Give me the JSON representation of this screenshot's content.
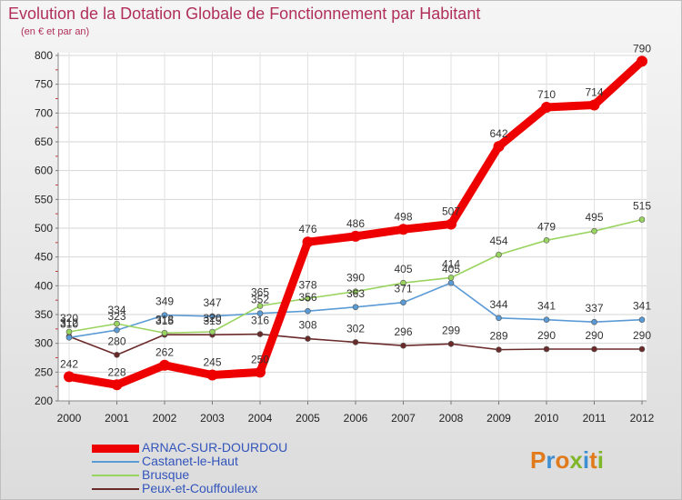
{
  "page": {
    "title": "Evolution de la Dotation Globale de Fonctionnement par Habitant",
    "subtitle": "(en € et par an)",
    "brand": "Proxiti"
  },
  "colors": {
    "title": "#b0305a",
    "legend_text": "#3355bb",
    "brand_letters": [
      "#e07a1a",
      "#3d8fd1",
      "#e07a1a",
      "#7fb62a",
      "#3d8fd1",
      "#e07a1a",
      "#7fb62a"
    ]
  },
  "chart_data": {
    "type": "line",
    "title": "Evolution de la Dotation Globale de Fonctionnement par Habitant",
    "ylabel": "(en € et par an)",
    "xlabel": "",
    "ylim": [
      200,
      800
    ],
    "yticks": [
      200,
      250,
      300,
      350,
      400,
      450,
      500,
      550,
      600,
      650,
      700,
      750,
      800
    ],
    "categories": [
      "2000",
      "2001",
      "2002",
      "2003",
      "2004",
      "2005",
      "2006",
      "2007",
      "2008",
      "2009",
      "2010",
      "2011",
      "2012"
    ],
    "grid": true,
    "legend_position": "bottom-left",
    "series": [
      {
        "name": "ARNAC-SUR-DOURDOU",
        "color": "#ee0000",
        "values": [
          242,
          228,
          262,
          245,
          250,
          476,
          486,
          498,
          507,
          642,
          710,
          714,
          790
        ]
      },
      {
        "name": "Castanet-le-Haut",
        "color": "#5b9bd5",
        "values": [
          310,
          323,
          349,
          347,
          352,
          356,
          363,
          371,
          405,
          344,
          341,
          337,
          341
        ]
      },
      {
        "name": "Brusque",
        "color": "#9ad460",
        "values": [
          320,
          334,
          318,
          320,
          365,
          378,
          390,
          405,
          414,
          454,
          479,
          495,
          515
        ]
      },
      {
        "name": "Peux-et-Couffouleux",
        "color": "#6b2a2a",
        "values": [
          312,
          280,
          315,
          315,
          316,
          308,
          302,
          296,
          299,
          289,
          290,
          290,
          290
        ]
      }
    ]
  }
}
